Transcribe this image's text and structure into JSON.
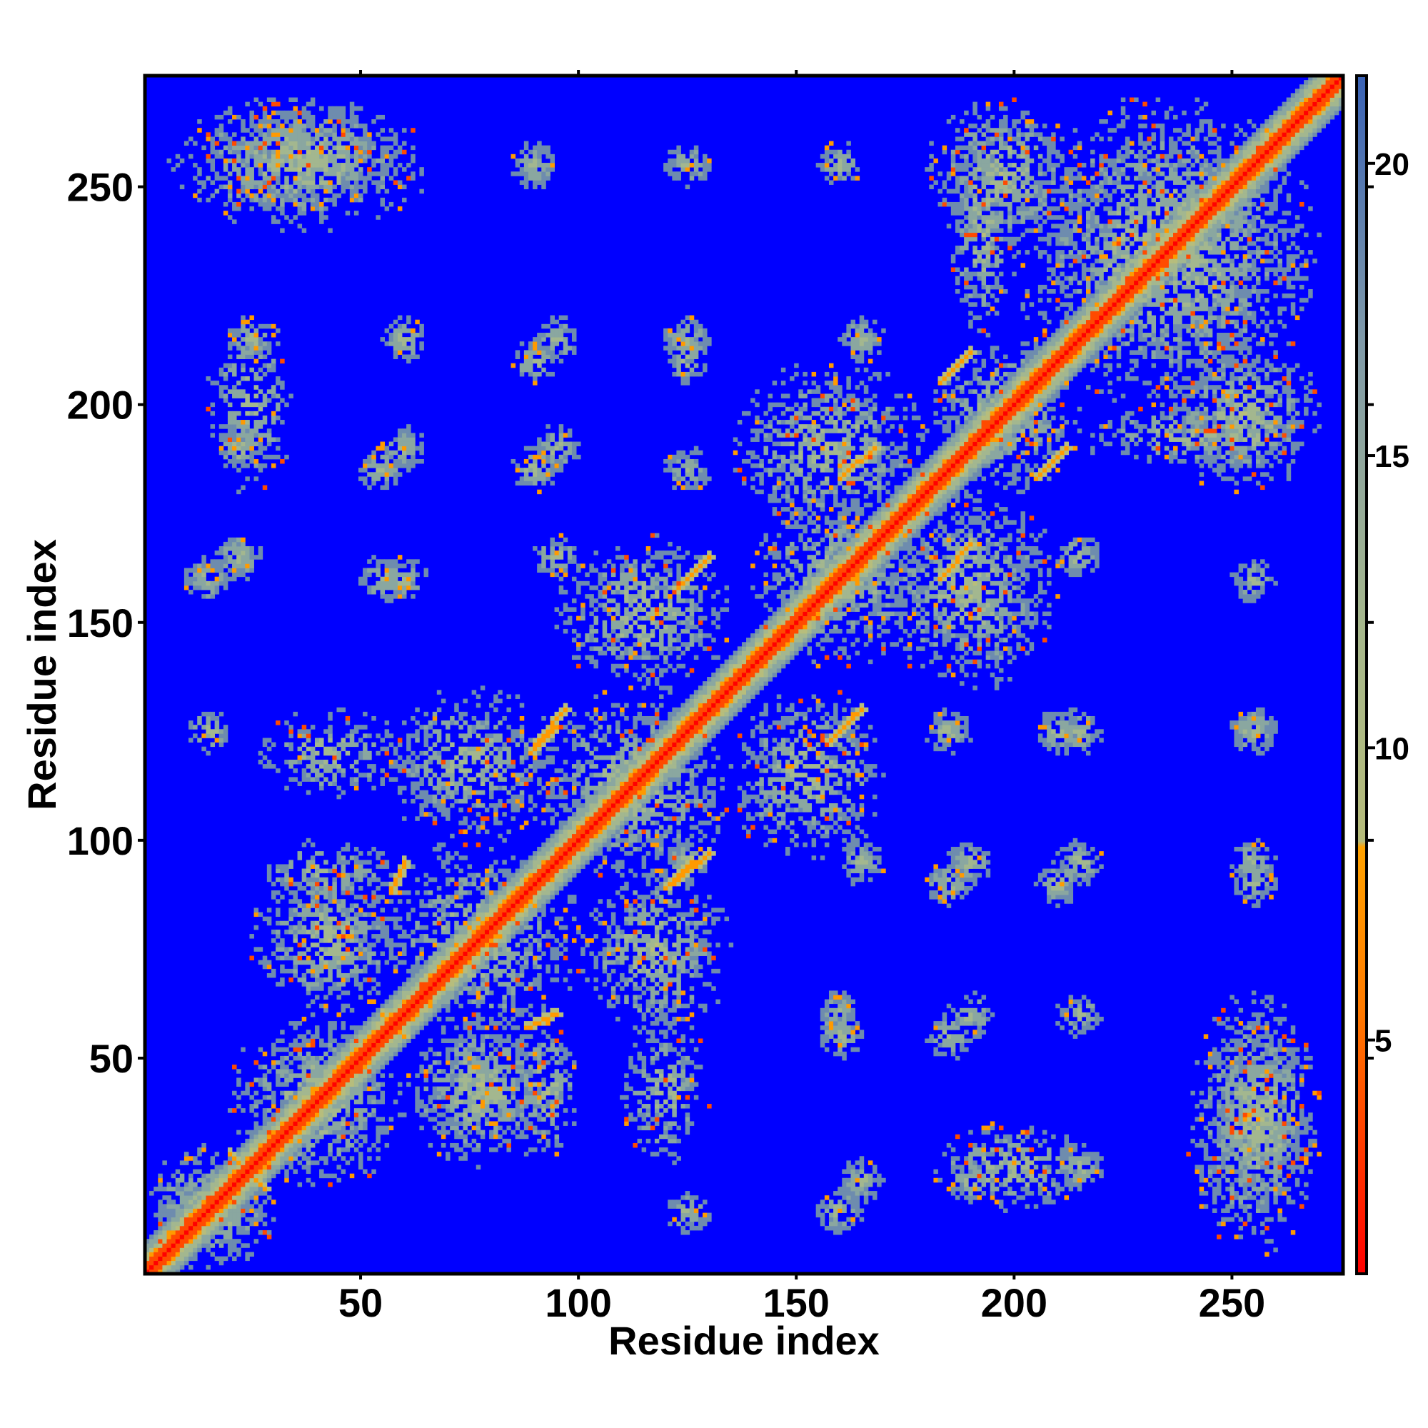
{
  "chart_data": {
    "type": "heatmap",
    "title": "",
    "xlabel": "Residue index",
    "ylabel": "Residue index",
    "xlim": [
      1,
      275
    ],
    "ylim": [
      1,
      275
    ],
    "x_ticks": [
      50,
      100,
      150,
      200,
      250
    ],
    "y_ticks": [
      50,
      100,
      150,
      200,
      250
    ],
    "colorbar": {
      "ticks": [
        5,
        10,
        15,
        20
      ],
      "range": [
        1,
        21.5
      ],
      "stops": [
        {
          "value": 1.0,
          "color": "#ff0000"
        },
        {
          "value": 5.5,
          "color": "#ff7a00"
        },
        {
          "value": 8.3,
          "color": "#ffa200"
        },
        {
          "value": 8.4,
          "color": "#b5bb7a"
        },
        {
          "value": 12.0,
          "color": "#a6b88c"
        },
        {
          "value": 17.0,
          "color": "#7f9aa9"
        },
        {
          "value": 21.5,
          "color": "#3a62b5"
        }
      ]
    },
    "background_color": "#0000ff",
    "diagonal_band_halfwidth": 4,
    "contact_blocks": [
      {
        "x": [
          1,
          30
        ],
        "y": [
          1,
          30
        ],
        "strength": 0.8
      },
      {
        "x": [
          20,
          60
        ],
        "y": [
          20,
          60
        ],
        "strength": 0.6
      },
      {
        "x": [
          25,
          60
        ],
        "y": [
          60,
          95
        ],
        "strength": 0.7
      },
      {
        "x": [
          60,
          95
        ],
        "y": [
          25,
          60
        ],
        "strength": 0.7
      },
      {
        "x": [
          55,
          100
        ],
        "y": [
          55,
          100
        ],
        "strength": 0.6
      },
      {
        "x": [
          25,
          60
        ],
        "y": [
          110,
          130
        ],
        "strength": 0.5
      },
      {
        "x": [
          110,
          130
        ],
        "y": [
          25,
          60
        ],
        "strength": 0.5
      },
      {
        "x": [
          55,
          95
        ],
        "y": [
          100,
          135
        ],
        "strength": 0.6
      },
      {
        "x": [
          100,
          135
        ],
        "y": [
          55,
          95
        ],
        "strength": 0.6
      },
      {
        "x": [
          90,
          135
        ],
        "y": [
          90,
          135
        ],
        "strength": 0.6
      },
      {
        "x": [
          95,
          135
        ],
        "y": [
          135,
          170
        ],
        "strength": 0.6
      },
      {
        "x": [
          135,
          170
        ],
        "y": [
          95,
          135
        ],
        "strength": 0.6
      },
      {
        "x": [
          140,
          180
        ],
        "y": [
          140,
          180
        ],
        "strength": 0.6
      },
      {
        "x": [
          135,
          180
        ],
        "y": [
          170,
          210
        ],
        "strength": 0.6
      },
      {
        "x": [
          170,
          210
        ],
        "y": [
          135,
          180
        ],
        "strength": 0.6
      },
      {
        "x": [
          180,
          215
        ],
        "y": [
          180,
          215
        ],
        "strength": 0.6
      },
      {
        "x": [
          200,
          270
        ],
        "y": [
          200,
          270
        ],
        "strength": 0.7
      },
      {
        "x": [
          5,
          65
        ],
        "y": [
          240,
          270
        ],
        "strength": 0.6
      },
      {
        "x": [
          240,
          270
        ],
        "y": [
          5,
          65
        ],
        "strength": 0.6
      },
      {
        "x": [
          180,
          215
        ],
        "y": [
          235,
          270
        ],
        "strength": 0.6
      },
      {
        "x": [
          235,
          270
        ],
        "y": [
          180,
          215
        ],
        "strength": 0.6
      },
      {
        "x": [
          15,
          35
        ],
        "y": [
          180,
          220
        ],
        "strength": 0.5
      },
      {
        "x": [
          180,
          220
        ],
        "y": [
          15,
          35
        ],
        "strength": 0.5
      },
      {
        "x": [
          25,
          60
        ],
        "y": [
          85,
          100
        ],
        "strength": 0.5
      },
      {
        "x": [
          85,
          100
        ],
        "y": [
          25,
          60
        ],
        "strength": 0.5
      },
      {
        "x": [
          245,
          270
        ],
        "y": [
          15,
          60
        ],
        "strength": 0.6
      },
      {
        "x": [
          15,
          60
        ],
        "y": [
          245,
          270
        ],
        "strength": 0.6
      },
      {
        "x": [
          215,
          265
        ],
        "y": [
          185,
          200
        ],
        "strength": 0.5
      },
      {
        "x": [
          185,
          200
        ],
        "y": [
          215,
          265
        ],
        "strength": 0.5
      }
    ],
    "contact_spots": [
      [
        15,
        160
      ],
      [
        160,
        15
      ],
      [
        55,
        160
      ],
      [
        160,
        55
      ],
      [
        15,
        125
      ],
      [
        125,
        15
      ],
      [
        55,
        185
      ],
      [
        185,
        55
      ],
      [
        90,
        185
      ],
      [
        185,
        90
      ],
      [
        125,
        185
      ],
      [
        185,
        125
      ],
      [
        90,
        210
      ],
      [
        210,
        90
      ],
      [
        125,
        210
      ],
      [
        210,
        125
      ],
      [
        90,
        255
      ],
      [
        255,
        90
      ],
      [
        125,
        255
      ],
      [
        255,
        125
      ],
      [
        215,
        165
      ],
      [
        165,
        215
      ],
      [
        215,
        125
      ],
      [
        125,
        215
      ],
      [
        215,
        95
      ],
      [
        95,
        215
      ],
      [
        255,
        125
      ],
      [
        255,
        160
      ],
      [
        160,
        255
      ],
      [
        255,
        95
      ],
      [
        160,
        60
      ],
      [
        60,
        160
      ],
      [
        190,
        60
      ],
      [
        60,
        190
      ],
      [
        215,
        60
      ],
      [
        60,
        215
      ],
      [
        165,
        22
      ],
      [
        22,
        165
      ],
      [
        190,
        22
      ],
      [
        22,
        190
      ],
      [
        215,
        25
      ],
      [
        25,
        215
      ],
      [
        165,
        95
      ],
      [
        95,
        165
      ],
      [
        190,
        95
      ],
      [
        95,
        190
      ],
      [
        125,
        95
      ]
    ],
    "strand_pairings": [
      {
        "a": [
          20,
          28
        ],
        "b": [
          28,
          20
        ]
      },
      {
        "a": [
          55,
          60
        ],
        "b": [
          60,
          55
        ]
      },
      {
        "a": [
          88,
          57
        ],
        "b": [
          95,
          60
        ]
      },
      {
        "a": [
          57,
          88
        ],
        "b": [
          60,
          95
        ]
      },
      {
        "a": [
          89,
          120
        ],
        "b": [
          95,
          126
        ]
      },
      {
        "a": [
          120,
          89
        ],
        "b": [
          126,
          95
        ]
      },
      {
        "a": [
          122,
          90
        ],
        "b": [
          130,
          97
        ]
      },
      {
        "a": [
          90,
          122
        ],
        "b": [
          97,
          130
        ]
      },
      {
        "a": [
          122,
          157
        ],
        "b": [
          130,
          165
        ]
      },
      {
        "a": [
          157,
          122
        ],
        "b": [
          165,
          130
        ]
      },
      {
        "a": [
          157,
          122
        ],
        "b": [
          165,
          130
        ]
      },
      {
        "a": [
          160,
          183
        ],
        "b": [
          168,
          190
        ]
      },
      {
        "a": [
          183,
          160
        ],
        "b": [
          190,
          168
        ]
      },
      {
        "a": [
          183,
          205
        ],
        "b": [
          190,
          212
        ]
      },
      {
        "a": [
          205,
          183
        ],
        "b": [
          212,
          190
        ]
      }
    ]
  }
}
